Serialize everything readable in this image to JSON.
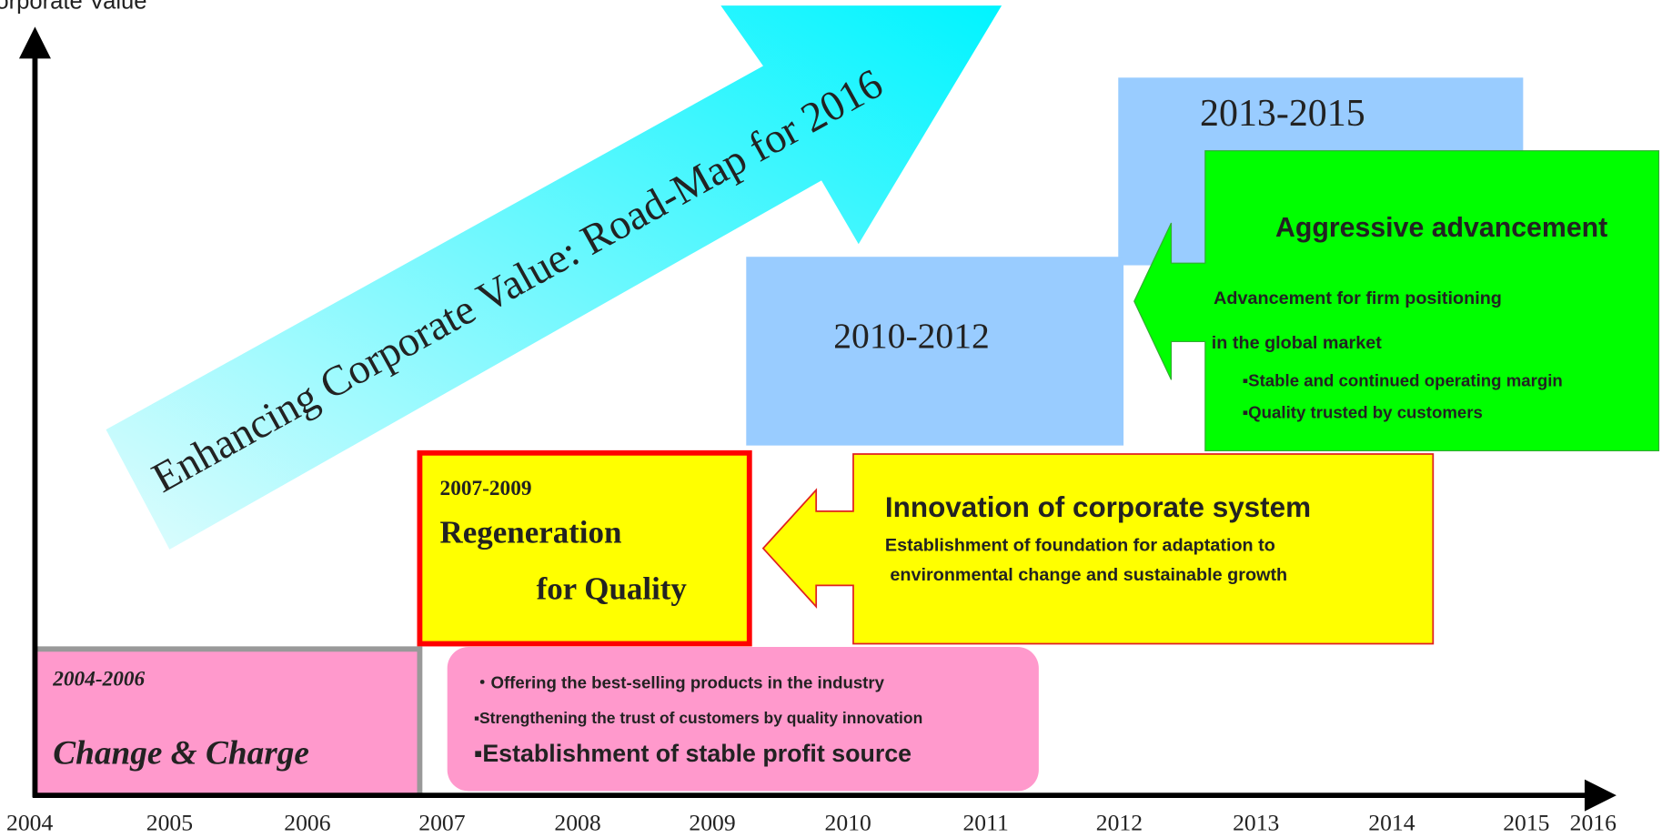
{
  "axis": {
    "y_label": "orporate Value",
    "years": [
      "2004",
      "2005",
      "2006",
      "2007",
      "2008",
      "2009",
      "2010",
      "2011",
      "2012",
      "2013",
      "2014",
      "2015",
      "2016"
    ]
  },
  "roadmap_arrow": {
    "label": "Enhancing Corporate Value:  Road-Map for 2016"
  },
  "period_2013_2015": {
    "label": "2013-2015"
  },
  "period_2010_2012": {
    "label": "2010-2012"
  },
  "aggressive": {
    "title": "Aggressive advancement",
    "lines": [
      "Advancement for firm positioning",
      "in the global market"
    ],
    "bullets": [
      "▪Stable and continued operating margin",
      "▪Quality trusted by customers"
    ]
  },
  "innovation": {
    "title": "Innovation of corporate system",
    "lines": [
      "Establishment of foundation for adaptation to",
      " environmental change and sustainable growth"
    ]
  },
  "period_2007_2009": {
    "years": "2007-2009",
    "line1": "Regeneration",
    "line2": "for Quality"
  },
  "period_2004_2006": {
    "years": "2004-2006",
    "title": "Change & Charge"
  },
  "quality_points": [
    "・Offering the best-selling products in the industry",
    "▪Strengthening the trust of customers by quality innovation",
    "▪Establishment of stable profit source"
  ]
}
